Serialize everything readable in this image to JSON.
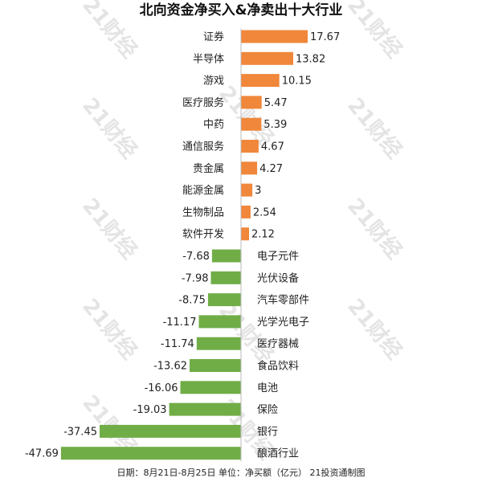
{
  "chart_data": {
    "type": "bar",
    "orientation": "horizontal",
    "title": "北向资金净买入&净卖出十大行业",
    "categories": [
      "证券",
      "半导体",
      "游戏",
      "医疗服务",
      "中药",
      "通信服务",
      "贵金属",
      "能源金属",
      "生物制品",
      "软件开发",
      "电子元件",
      "光伏设备",
      "汽车零部件",
      "光学光电子",
      "医疗器械",
      "食品饮料",
      "电池",
      "保险",
      "银行",
      "酿酒行业"
    ],
    "values": [
      17.67,
      13.82,
      10.15,
      5.47,
      5.39,
      4.67,
      4.27,
      3,
      2.54,
      2.12,
      -7.68,
      -7.98,
      -8.75,
      -11.17,
      -11.74,
      -13.62,
      -16.06,
      -19.03,
      -37.45,
      -47.69
    ],
    "value_labels": [
      "17.67",
      "13.82",
      "10.15",
      "5.47",
      "5.39",
      "4.67",
      "4.27",
      "3",
      "2.54",
      "2.12",
      "-7.68",
      "-7.98",
      "-8.75",
      "-11.17",
      "-11.74",
      "-13.62",
      "-16.06",
      "-19.03",
      "-37.45",
      "-47.69"
    ],
    "colors": {
      "positive": "#f0873a",
      "negative": "#70ad47"
    },
    "xlim": [
      -47.69,
      17.67
    ],
    "grid": false,
    "legend": "none"
  },
  "footer": {
    "text": "日期：8月21日-8月25日  单位：净买额（亿元）  21投资通制图"
  },
  "watermark": {
    "text": "21财经"
  }
}
